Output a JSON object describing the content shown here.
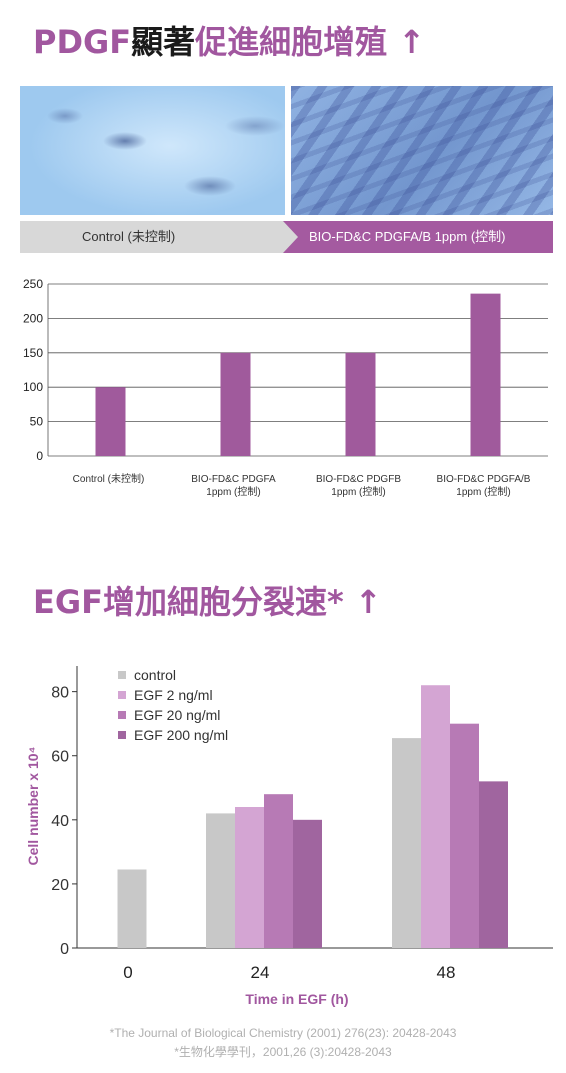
{
  "heading_top": {
    "part1": "PDGF",
    "part2": "顯著",
    "part3": "促進細胞增殖 ↑"
  },
  "banner": {
    "left": "Control (未控制)",
    "right": "BIO-FD&C PDGFA/B 1ppm (控制)"
  },
  "heading_bottom": "EGF增加細胞分裂速* ↑",
  "colors": {
    "accent": "#a1579f",
    "bar1": "#a05a9c",
    "control": "#c8c8c8",
    "egf2": "#d4a5d3",
    "egf20": "#b77ab5",
    "egf200": "#a0659f"
  },
  "chart_data": [
    {
      "type": "bar",
      "categories": [
        [
          "Control (未控制)"
        ],
        [
          "BIO-FD&C PDGFA",
          "1ppm (控制)"
        ],
        [
          "BIO-FD&C PDGFB",
          "1ppm (控制)"
        ],
        [
          "BIO-FD&C PDGFA/B",
          "1ppm (控制)"
        ]
      ],
      "values": [
        100,
        150,
        150,
        236
      ],
      "ylim": [
        0,
        250
      ],
      "yticks": [
        0,
        50,
        100,
        150,
        200,
        250
      ],
      "grid": true
    },
    {
      "type": "bar",
      "categories": [
        "0",
        "24",
        "48"
      ],
      "series": [
        {
          "name": "control",
          "values": [
            24.5,
            42,
            65.5
          ]
        },
        {
          "name": "EGF 2 ng/ml",
          "values": [
            null,
            44,
            82
          ]
        },
        {
          "name": "EGF 20 ng/ml",
          "values": [
            null,
            48,
            70
          ]
        },
        {
          "name": "EGF 200 ng/ml",
          "values": [
            null,
            40,
            52
          ]
        }
      ],
      "ylabel": "Cell number x 10⁴",
      "xlabel": "Time in EGF (h)",
      "ylim": [
        0,
        88
      ],
      "yticks": [
        0,
        20,
        40,
        60,
        80
      ],
      "legend": "top-left",
      "grid": false
    }
  ],
  "references": [
    "*The Journal of Biological Chemistry (2001) 276(23): 20428-2043",
    "*生物化學學刊，2001,26 (3):20428-2043"
  ]
}
